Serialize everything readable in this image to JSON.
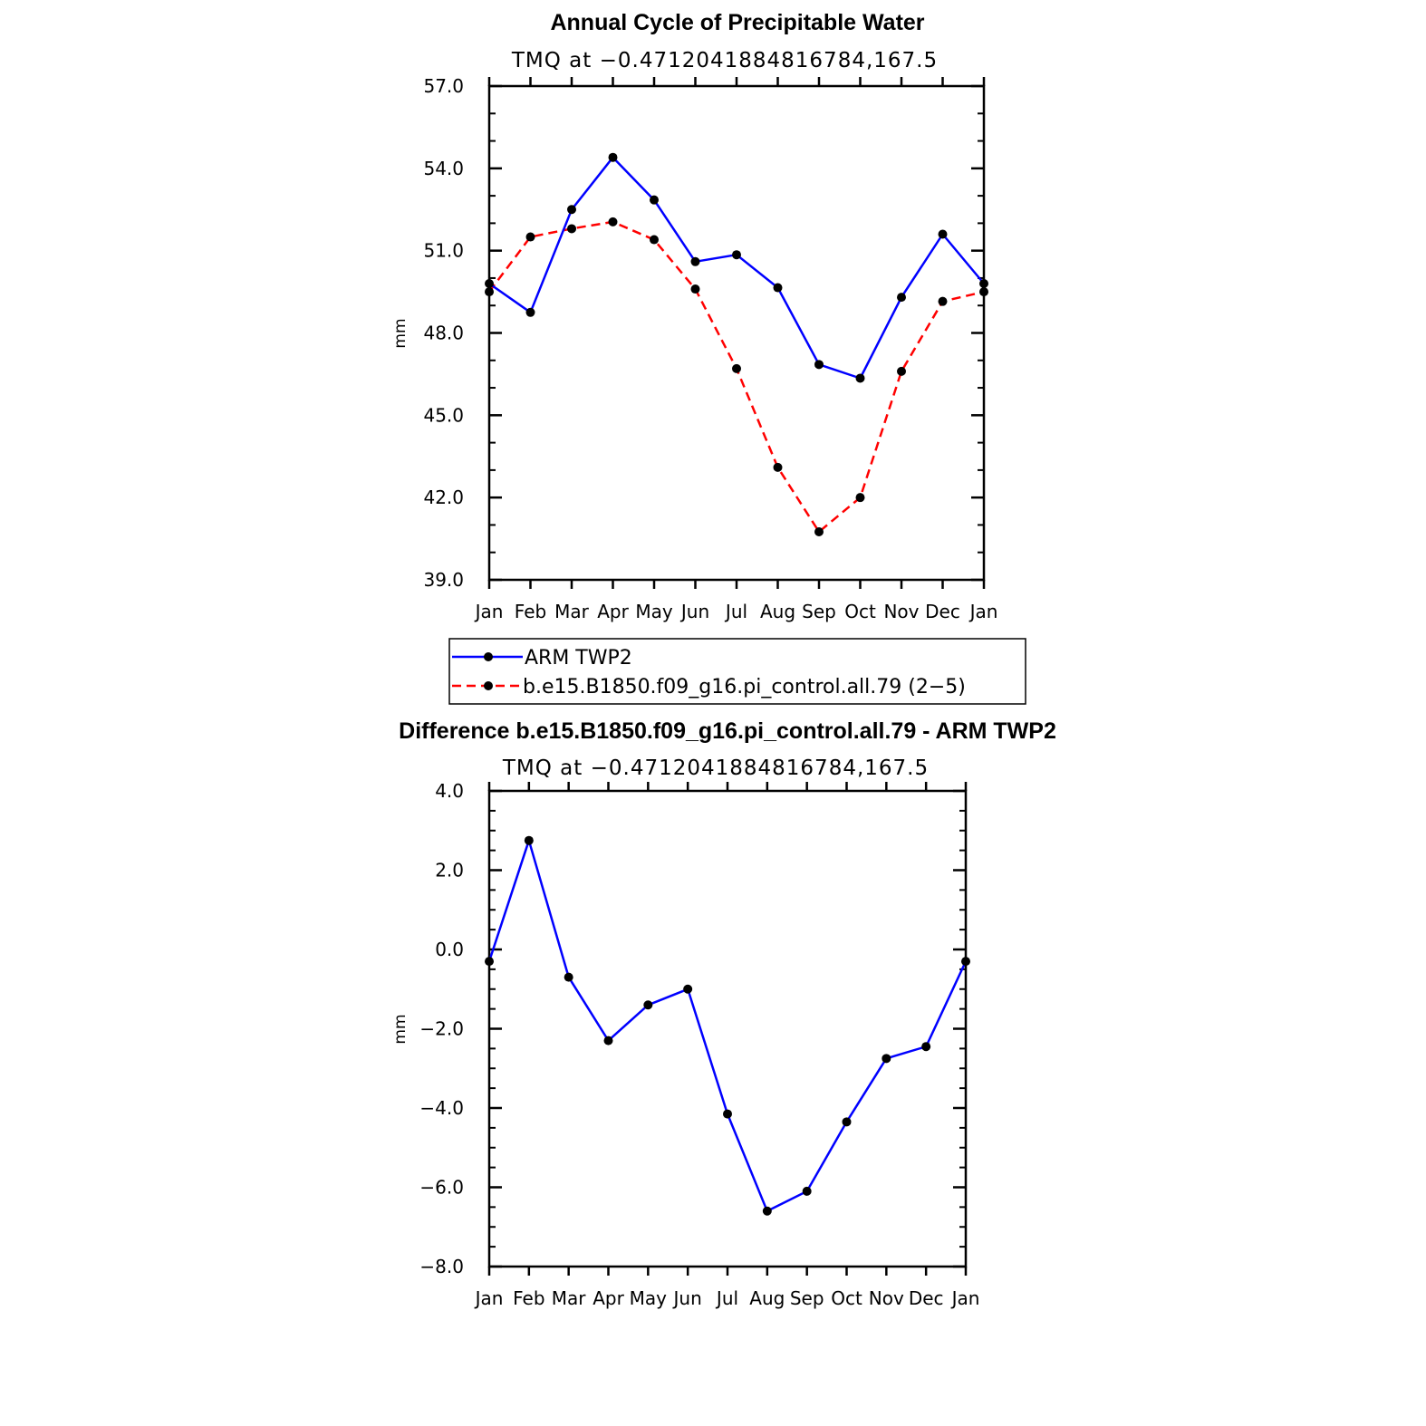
{
  "chart_data": [
    {
      "type": "line",
      "title": "Annual Cycle of Precipitable Water",
      "subtitle": "TMQ at −0.4712041884816784,167.5",
      "xlabel": "",
      "ylabel": "mm",
      "categories": [
        "Jan",
        "Feb",
        "Mar",
        "Apr",
        "May",
        "Jun",
        "Jul",
        "Aug",
        "Sep",
        "Oct",
        "Nov",
        "Dec",
        "Jan"
      ],
      "ylim": [
        39.0,
        57.0
      ],
      "yticks": [
        "39.0",
        "42.0",
        "45.0",
        "48.0",
        "51.0",
        "54.0",
        "57.0"
      ],
      "series": [
        {
          "name": "ARM  TWP2",
          "color": "#0000ff",
          "dash": "solid",
          "values": [
            49.8,
            48.75,
            52.5,
            54.4,
            52.85,
            50.6,
            50.85,
            49.65,
            46.85,
            46.35,
            49.3,
            51.6,
            49.8
          ]
        },
        {
          "name": "b.e15.B1850.f09_g16.pi_control.all.79  (2−5)",
          "color": "#ff0000",
          "dash": "dashed",
          "values": [
            49.5,
            51.5,
            51.8,
            52.05,
            51.4,
            49.6,
            46.7,
            43.1,
            40.75,
            42.0,
            46.6,
            49.15,
            49.5
          ]
        }
      ]
    },
    {
      "type": "line",
      "title": "Difference b.e15.B1850.f09_g16.pi_control.all.79 - ARM TWP2",
      "subtitle": "TMQ at −0.4712041884816784,167.5",
      "xlabel": "",
      "ylabel": "mm",
      "categories": [
        "Jan",
        "Feb",
        "Mar",
        "Apr",
        "May",
        "Jun",
        "Jul",
        "Aug",
        "Sep",
        "Oct",
        "Nov",
        "Dec",
        "Jan"
      ],
      "ylim": [
        -8.0,
        4.0
      ],
      "yticks": [
        "−8.0",
        "−6.0",
        "−4.0",
        "−2.0",
        "0.0",
        "2.0",
        "4.0"
      ],
      "series": [
        {
          "name": "Difference",
          "color": "#0000ff",
          "dash": "solid",
          "values": [
            -0.3,
            2.75,
            -0.7,
            -2.3,
            -1.4,
            -1.0,
            -4.15,
            -6.6,
            -6.1,
            -4.35,
            -2.75,
            -2.45,
            -0.3
          ]
        }
      ]
    }
  ]
}
